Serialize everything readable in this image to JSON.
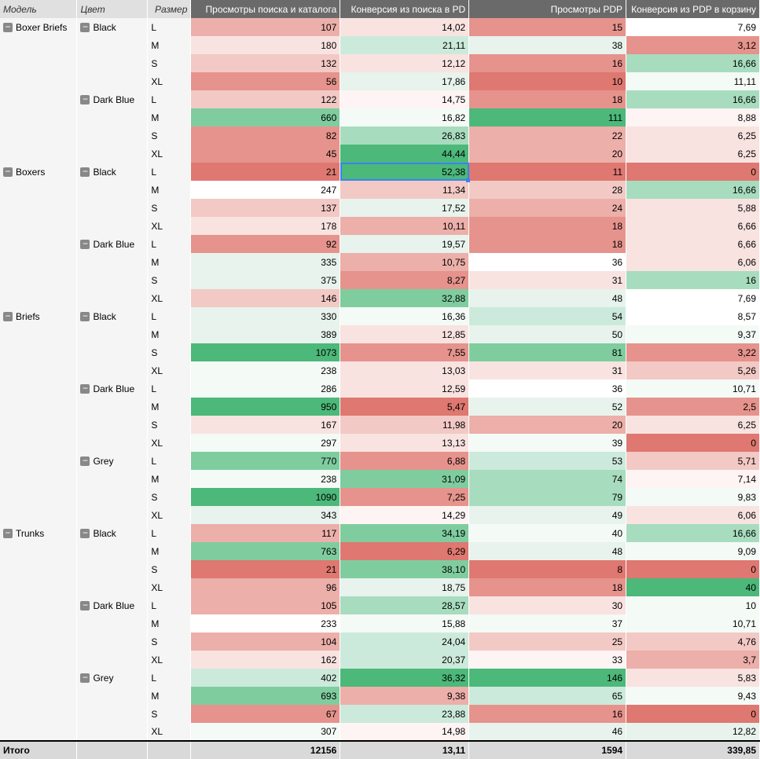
{
  "header": {
    "model": "Модель",
    "color": "Цвет",
    "size": "Размер",
    "m1": "Просмотры поиска и каталога",
    "m2": "Конверсия из поиска в PD",
    "m3": "Просмотры PDP",
    "m4": "Конверсия из PDP в корзину"
  },
  "colors": {
    "g5": "#4cb87a",
    "g4": "#7fcd9f",
    "g3": "#a8dcbf",
    "g2": "#cceadb",
    "g1": "#e7f3ec",
    "g0": "#f4faf6",
    "w": "#ffffff",
    "r0": "#fdf4f3",
    "r1": "#f8e3e1",
    "r2": "#f2c9c5",
    "r3": "#ecafa9",
    "r4": "#e5938c",
    "r5": "#de7870"
  },
  "rows": [
    {
      "model": "Boxer Briefs",
      "color": "Black",
      "size": "L",
      "m1": "107",
      "c1": "r3",
      "m2": "14,02",
      "c2": "r1",
      "m3": "15",
      "c3": "r4",
      "m4": "7,69",
      "c4": "w",
      "sel": false
    },
    {
      "model": "",
      "color": "",
      "size": "M",
      "m1": "180",
      "c1": "r1",
      "m2": "21,11",
      "c2": "g2",
      "m3": "38",
      "c3": "g1",
      "m4": "3,12",
      "c4": "r4",
      "sel": false
    },
    {
      "model": "",
      "color": "",
      "size": "S",
      "m1": "132",
      "c1": "r2",
      "m2": "12,12",
      "c2": "r1",
      "m3": "16",
      "c3": "r4",
      "m4": "16,66",
      "c4": "g3",
      "sel": false
    },
    {
      "model": "",
      "color": "",
      "size": "XL",
      "m1": "56",
      "c1": "r4",
      "m2": "17,86",
      "c2": "g1",
      "m3": "10",
      "c3": "r5",
      "m4": "11,11",
      "c4": "g0",
      "sel": false
    },
    {
      "model": "",
      "color": "Dark Blue",
      "size": "L",
      "m1": "122",
      "c1": "r2",
      "m2": "14,75",
      "c2": "r0",
      "m3": "18",
      "c3": "r4",
      "m4": "16,66",
      "c4": "g3",
      "sel": false
    },
    {
      "model": "",
      "color": "",
      "size": "M",
      "m1": "660",
      "c1": "g4",
      "m2": "16,82",
      "c2": "g0",
      "m3": "111",
      "c3": "g5",
      "m4": "8,88",
      "c4": "r0",
      "sel": false
    },
    {
      "model": "",
      "color": "",
      "size": "S",
      "m1": "82",
      "c1": "r4",
      "m2": "26,83",
      "c2": "g3",
      "m3": "22",
      "c3": "r3",
      "m4": "6,25",
      "c4": "r1",
      "sel": false
    },
    {
      "model": "",
      "color": "",
      "size": "XL",
      "m1": "45",
      "c1": "r4",
      "m2": "44,44",
      "c2": "g5",
      "m3": "20",
      "c3": "r3",
      "m4": "6,25",
      "c4": "r1",
      "sel": false
    },
    {
      "model": "Boxers",
      "color": "Black",
      "size": "L",
      "m1": "21",
      "c1": "r5",
      "m2": "52,38",
      "c2": "g5",
      "m3": "11",
      "c3": "r5",
      "m4": "0",
      "c4": "r5",
      "sel": true
    },
    {
      "model": "",
      "color": "",
      "size": "M",
      "m1": "247",
      "c1": "w",
      "m2": "11,34",
      "c2": "r2",
      "m3": "28",
      "c3": "r2",
      "m4": "16,66",
      "c4": "g3",
      "sel": false
    },
    {
      "model": "",
      "color": "",
      "size": "S",
      "m1": "137",
      "c1": "r2",
      "m2": "17,52",
      "c2": "g1",
      "m3": "24",
      "c3": "r3",
      "m4": "5,88",
      "c4": "r1",
      "sel": false
    },
    {
      "model": "",
      "color": "",
      "size": "XL",
      "m1": "178",
      "c1": "r1",
      "m2": "10,11",
      "c2": "r3",
      "m3": "18",
      "c3": "r4",
      "m4": "6,66",
      "c4": "r1",
      "sel": false
    },
    {
      "model": "",
      "color": "Dark Blue",
      "size": "L",
      "m1": "92",
      "c1": "r4",
      "m2": "19,57",
      "c2": "g1",
      "m3": "18",
      "c3": "r4",
      "m4": "6,66",
      "c4": "r1",
      "sel": false
    },
    {
      "model": "",
      "color": "",
      "size": "M",
      "m1": "335",
      "c1": "g1",
      "m2": "10,75",
      "c2": "r3",
      "m3": "36",
      "c3": "w",
      "m4": "6,06",
      "c4": "r1",
      "sel": false
    },
    {
      "model": "",
      "color": "",
      "size": "S",
      "m1": "375",
      "c1": "g1",
      "m2": "8,27",
      "c2": "r4",
      "m3": "31",
      "c3": "r1",
      "m4": "16",
      "c4": "g3",
      "sel": false
    },
    {
      "model": "",
      "color": "",
      "size": "XL",
      "m1": "146",
      "c1": "r2",
      "m2": "32,88",
      "c2": "g4",
      "m3": "48",
      "c3": "g1",
      "m4": "7,69",
      "c4": "w",
      "sel": false
    },
    {
      "model": "Briefs",
      "color": "Black",
      "size": "L",
      "m1": "330",
      "c1": "g1",
      "m2": "16,36",
      "c2": "g0",
      "m3": "54",
      "c3": "g2",
      "m4": "8,57",
      "c4": "w",
      "sel": false
    },
    {
      "model": "",
      "color": "",
      "size": "M",
      "m1": "389",
      "c1": "g1",
      "m2": "12,85",
      "c2": "r1",
      "m3": "50",
      "c3": "g1",
      "m4": "9,37",
      "c4": "g0",
      "sel": false
    },
    {
      "model": "",
      "color": "",
      "size": "S",
      "m1": "1073",
      "c1": "g5",
      "m2": "7,55",
      "c2": "r4",
      "m3": "81",
      "c3": "g4",
      "m4": "3,22",
      "c4": "r4",
      "sel": false
    },
    {
      "model": "",
      "color": "",
      "size": "XL",
      "m1": "238",
      "c1": "g0",
      "m2": "13,03",
      "c2": "r1",
      "m3": "31",
      "c3": "r1",
      "m4": "5,26",
      "c4": "r2",
      "sel": false
    },
    {
      "model": "",
      "color": "Dark Blue",
      "size": "L",
      "m1": "286",
      "c1": "g0",
      "m2": "12,59",
      "c2": "r1",
      "m3": "36",
      "c3": "w",
      "m4": "10,71",
      "c4": "g0",
      "sel": false
    },
    {
      "model": "",
      "color": "",
      "size": "M",
      "m1": "950",
      "c1": "g5",
      "m2": "5,47",
      "c2": "r5",
      "m3": "52",
      "c3": "g1",
      "m4": "2,5",
      "c4": "r4",
      "sel": false
    },
    {
      "model": "",
      "color": "",
      "size": "S",
      "m1": "167",
      "c1": "r1",
      "m2": "11,98",
      "c2": "r2",
      "m3": "20",
      "c3": "r3",
      "m4": "6,25",
      "c4": "r1",
      "sel": false
    },
    {
      "model": "",
      "color": "",
      "size": "XL",
      "m1": "297",
      "c1": "g0",
      "m2": "13,13",
      "c2": "r1",
      "m3": "39",
      "c3": "g0",
      "m4": "0",
      "c4": "r5",
      "sel": false
    },
    {
      "model": "",
      "color": "Grey",
      "size": "L",
      "m1": "770",
      "c1": "g4",
      "m2": "6,88",
      "c2": "r4",
      "m3": "53",
      "c3": "g2",
      "m4": "5,71",
      "c4": "r2",
      "sel": false
    },
    {
      "model": "",
      "color": "",
      "size": "M",
      "m1": "238",
      "c1": "g0",
      "m2": "31,09",
      "c2": "g4",
      "m3": "74",
      "c3": "g3",
      "m4": "7,14",
      "c4": "r0",
      "sel": false
    },
    {
      "model": "",
      "color": "",
      "size": "S",
      "m1": "1090",
      "c1": "g5",
      "m2": "7,25",
      "c2": "r4",
      "m3": "79",
      "c3": "g3",
      "m4": "9,83",
      "c4": "g0",
      "sel": false
    },
    {
      "model": "",
      "color": "",
      "size": "XL",
      "m1": "343",
      "c1": "g1",
      "m2": "14,29",
      "c2": "r0",
      "m3": "49",
      "c3": "g1",
      "m4": "6,06",
      "c4": "r1",
      "sel": false
    },
    {
      "model": "Trunks",
      "color": "Black",
      "size": "L",
      "m1": "117",
      "c1": "r3",
      "m2": "34,19",
      "c2": "g4",
      "m3": "40",
      "c3": "g0",
      "m4": "16,66",
      "c4": "g3",
      "sel": false
    },
    {
      "model": "",
      "color": "",
      "size": "M",
      "m1": "763",
      "c1": "g4",
      "m2": "6,29",
      "c2": "r5",
      "m3": "48",
      "c3": "g1",
      "m4": "9,09",
      "c4": "g0",
      "sel": false
    },
    {
      "model": "",
      "color": "",
      "size": "S",
      "m1": "21",
      "c1": "r5",
      "m2": "38,10",
      "c2": "g4",
      "m3": "8",
      "c3": "r5",
      "m4": "0",
      "c4": "r5",
      "sel": false
    },
    {
      "model": "",
      "color": "",
      "size": "XL",
      "m1": "96",
      "c1": "r3",
      "m2": "18,75",
      "c2": "g1",
      "m3": "18",
      "c3": "r4",
      "m4": "40",
      "c4": "g5",
      "sel": false
    },
    {
      "model": "",
      "color": "Dark Blue",
      "size": "L",
      "m1": "105",
      "c1": "r3",
      "m2": "28,57",
      "c2": "g3",
      "m3": "30",
      "c3": "r1",
      "m4": "10",
      "c4": "g0",
      "sel": false
    },
    {
      "model": "",
      "color": "",
      "size": "M",
      "m1": "233",
      "c1": "w",
      "m2": "15,88",
      "c2": "g0",
      "m3": "37",
      "c3": "g0",
      "m4": "10,71",
      "c4": "g0",
      "sel": false
    },
    {
      "model": "",
      "color": "",
      "size": "S",
      "m1": "104",
      "c1": "r3",
      "m2": "24,04",
      "c2": "g2",
      "m3": "25",
      "c3": "r2",
      "m4": "4,76",
      "c4": "r2",
      "sel": false
    },
    {
      "model": "",
      "color": "",
      "size": "XL",
      "m1": "162",
      "c1": "r1",
      "m2": "20,37",
      "c2": "g2",
      "m3": "33",
      "c3": "r0",
      "m4": "3,7",
      "c4": "r3",
      "sel": false
    },
    {
      "model": "",
      "color": "Grey",
      "size": "L",
      "m1": "402",
      "c1": "g2",
      "m2": "36,32",
      "c2": "g5",
      "m3": "146",
      "c3": "g5",
      "m4": "5,83",
      "c4": "r1",
      "sel": false
    },
    {
      "model": "",
      "color": "",
      "size": "M",
      "m1": "693",
      "c1": "g4",
      "m2": "9,38",
      "c2": "r3",
      "m3": "65",
      "c3": "g2",
      "m4": "9,43",
      "c4": "g0",
      "sel": false
    },
    {
      "model": "",
      "color": "",
      "size": "S",
      "m1": "67",
      "c1": "r4",
      "m2": "23,88",
      "c2": "g2",
      "m3": "16",
      "c3": "r4",
      "m4": "0",
      "c4": "r5",
      "sel": false
    },
    {
      "model": "",
      "color": "",
      "size": "XL",
      "m1": "307",
      "c1": "g0",
      "m2": "14,98",
      "c2": "r0",
      "m3": "46",
      "c3": "g1",
      "m4": "12,82",
      "c4": "g1",
      "sel": false
    }
  ],
  "total": {
    "label": "Итого",
    "m1": "12156",
    "m2": "13,11",
    "m3": "1594",
    "m4": "339,85"
  }
}
